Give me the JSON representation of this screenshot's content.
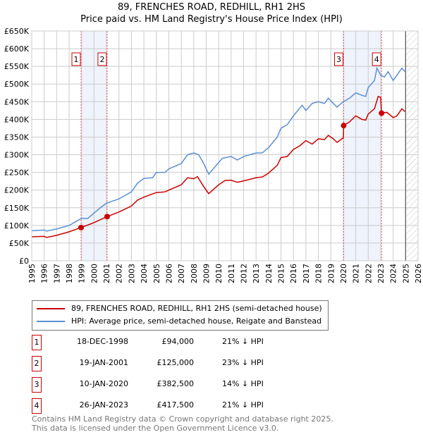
{
  "chart_data": {
    "type": "line",
    "title": "89, FRENCHES ROAD, REDHILL, RH1 2HS",
    "subtitle": "Price paid vs. HM Land Registry's House Price Index (HPI)",
    "ylim": [
      0,
      650000
    ],
    "xlim": [
      1995,
      2026
    ],
    "yticks": [
      "£0",
      "£50K",
      "£100K",
      "£150K",
      "£200K",
      "£250K",
      "£300K",
      "£350K",
      "£400K",
      "£450K",
      "£500K",
      "£550K",
      "£600K",
      "£650K"
    ],
    "xticks": [
      "1995",
      "1996",
      "1997",
      "1998",
      "1999",
      "2000",
      "2001",
      "2002",
      "2003",
      "2004",
      "2005",
      "2006",
      "2007",
      "2008",
      "2009",
      "2010",
      "2011",
      "2012",
      "2013",
      "2014",
      "2015",
      "2016",
      "2017",
      "2018",
      "2019",
      "2020",
      "2021",
      "2022",
      "2023",
      "2024",
      "2025",
      "2026"
    ],
    "series": [
      {
        "name": "89, FRENCHES ROAD, REDHILL, RH1 2HS (semi-detached house)",
        "color": "#cc0000",
        "x": [
          1995,
          1996,
          1996.2,
          1997,
          1998,
          1998.96,
          2000,
          2001.05,
          2002,
          2003,
          2003.5,
          2004,
          2005,
          2005.7,
          2006,
          2007,
          2007.5,
          2008,
          2008.3,
          2008.8,
          2009.2,
          2010,
          2010.5,
          2011,
          2011.5,
          2012,
          2013,
          2013.5,
          2014,
          2014.7,
          2015,
          2015.5,
          2016,
          2016.5,
          2017,
          2017.5,
          2018,
          2018.5,
          2018.8,
          2019.2,
          2019.5,
          2020,
          2020.03,
          2020.5,
          2021,
          2021.5,
          2021.8,
          2022,
          2022.5,
          2022.8,
          2023.0,
          2023.07,
          2023.5,
          2024,
          2024.3,
          2024.7,
          2024.95
        ],
        "y": [
          68,
          69,
          66,
          72,
          82,
          94,
          108,
          125,
          138,
          155,
          172,
          180,
          193,
          195,
          200,
          215,
          235,
          232,
          238,
          210,
          190,
          215,
          227,
          228,
          222,
          226,
          235,
          237,
          248,
          270,
          292,
          295,
          315,
          325,
          340,
          330,
          345,
          343,
          355,
          345,
          335,
          348,
          382.5,
          393,
          410,
          400,
          398,
          415,
          430,
          465,
          462,
          417.5,
          420,
          405,
          410,
          430,
          422
        ]
      },
      {
        "name": "HPI: Average price, semi-detached house, Reigate and Banstead",
        "color": "#5b8fd4",
        "x": [
          1995,
          1996,
          1996.2,
          1997,
          1998,
          1998.5,
          1999,
          1999.5,
          2000,
          2000.5,
          2001,
          2002,
          2003,
          2003.5,
          2004,
          2004.7,
          2005,
          2005.7,
          2006,
          2007,
          2007.5,
          2008,
          2008.4,
          2008.8,
          2009.2,
          2009.8,
          2010.3,
          2011,
          2011.5,
          2012,
          2013,
          2013.5,
          2014,
          2014.7,
          2015,
          2015.5,
          2016,
          2016.7,
          2017,
          2017.5,
          2018,
          2018.5,
          2018.8,
          2019.2,
          2019.5,
          2020,
          2020.5,
          2021,
          2021.5,
          2021.8,
          2022,
          2022.5,
          2022.7,
          2023,
          2023.3,
          2023.6,
          2024,
          2024.3,
          2024.7,
          2024.95
        ],
        "y": [
          85,
          87,
          84,
          90,
          100,
          110,
          120,
          120,
          135,
          150,
          163,
          175,
          195,
          220,
          233,
          235,
          250,
          250,
          260,
          275,
          300,
          305,
          300,
          275,
          245,
          270,
          290,
          295,
          285,
          295,
          305,
          305,
          320,
          350,
          375,
          385,
          410,
          440,
          425,
          445,
          450,
          445,
          460,
          445,
          435,
          450,
          460,
          475,
          468,
          465,
          490,
          510,
          545,
          525,
          520,
          535,
          510,
          525,
          545,
          535
        ]
      }
    ],
    "sales": [
      {
        "id": "1",
        "date": "18-DEC-1998",
        "price": "£94,000",
        "hpi": "21% ↓ HPI",
        "x": 1998.96,
        "y": 94
      },
      {
        "id": "2",
        "date": "19-JAN-2001",
        "price": "£125,000",
        "hpi": "23% ↓ HPI",
        "x": 2001.05,
        "y": 125
      },
      {
        "id": "3",
        "date": "10-JAN-2020",
        "price": "£382,500",
        "hpi": "14% ↓ HPI",
        "x": 2020.03,
        "y": 382.5
      },
      {
        "id": "4",
        "date": "26-JAN-2023",
        "price": "£417,500",
        "hpi": "21% ↓ HPI",
        "x": 2023.07,
        "y": 417.5
      }
    ],
    "shaded_spans": [
      [
        1998.96,
        2001.05
      ],
      [
        2020.03,
        2023.07
      ]
    ],
    "forecast_from": 2025,
    "legend_placement": "bottom"
  },
  "footer": {
    "line1": "Contains HM Land Registry data © Crown copyright and database right 2025.",
    "line2": "This data is licensed under the Open Government Licence v3.0."
  }
}
